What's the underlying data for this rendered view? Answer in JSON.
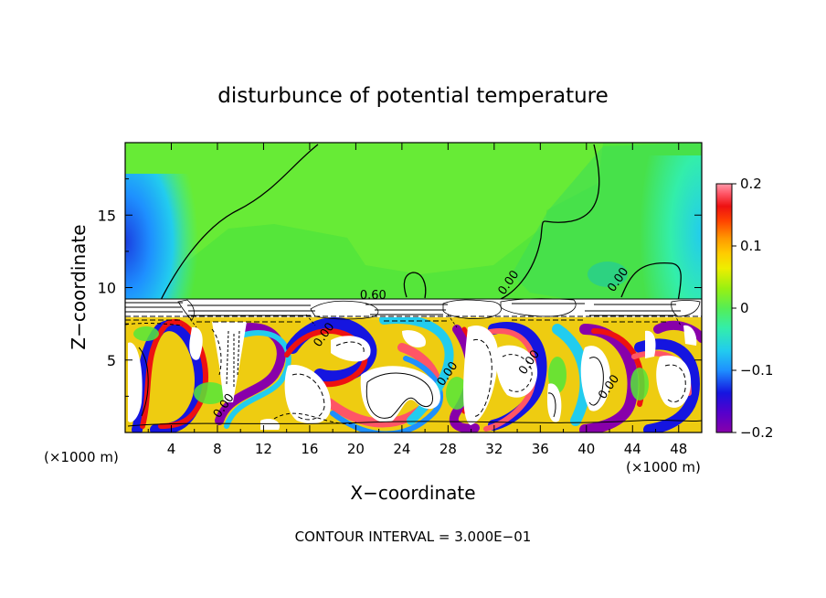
{
  "chart_data": {
    "type": "heatmap",
    "title": "disturbunce of potential temperature",
    "xlabel": "X−coordinate",
    "ylabel": "Z−coordinate",
    "x_unit_left": "(×1000 m)",
    "x_unit_right": "(×1000 m)",
    "xlim": [
      0,
      50
    ],
    "ylim": [
      0,
      20
    ],
    "x_ticks": [
      4,
      8,
      12,
      16,
      20,
      24,
      28,
      32,
      36,
      40,
      44,
      48
    ],
    "x_tick_labels": [
      "4",
      "8",
      "12",
      "16",
      "20",
      "24",
      "28",
      "32",
      "36",
      "40",
      "44",
      "48"
    ],
    "y_ticks": [
      5,
      10,
      15
    ],
    "y_tick_labels": [
      "5",
      "10",
      "15"
    ],
    "colorbar": {
      "range": [
        -0.2,
        0.2
      ],
      "ticks": [
        0.2,
        0.1,
        0,
        -0.1,
        -0.2
      ],
      "tick_labels": [
        "0.2",
        "0.1",
        "0",
        "−0.1",
        "−0.2"
      ],
      "colors": [
        "#8800aa",
        "#5500cc",
        "#1515e0",
        "#1a55ee",
        "#1e90ff",
        "#22ccee",
        "#33eeaa",
        "#55ee55",
        "#88f022",
        "#bbee00",
        "#eeee00",
        "#ffcc00",
        "#ff9900",
        "#ff5500",
        "#ee1111",
        "#ff5566",
        "#ff99aa"
      ]
    },
    "contour_labels": [
      {
        "text": "0.60",
        "x": 21.5,
        "y": 9.2
      },
      {
        "text": "0.00",
        "x": 17.5,
        "y": 6.6
      },
      {
        "text": "0.00",
        "x": 8.8,
        "y": 1.7
      },
      {
        "text": "0.00",
        "x": 33.5,
        "y": 10.2
      },
      {
        "text": "0.00",
        "x": 43.0,
        "y": 10.4
      },
      {
        "text": "0.00",
        "x": 28.2,
        "y": 3.9
      },
      {
        "text": "0.00",
        "x": 35.3,
        "y": 4.7
      },
      {
        "text": "0.00",
        "x": 42.2,
        "y": 3.0
      }
    ],
    "footnote": "CONTOUR INTERVAL = 3.000E−01"
  }
}
